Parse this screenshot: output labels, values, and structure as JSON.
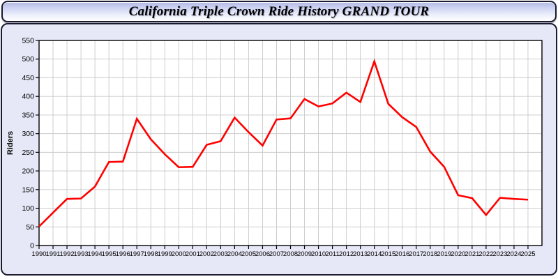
{
  "window": {
    "title": "California Triple Crown Ride History GRAND TOUR"
  },
  "colors": {
    "line": "#ff0000",
    "grid": "#c9c9c9",
    "plot_bg": "#ffffff",
    "panel_bg": "#e7e8f7",
    "frame": "#000000",
    "border": "#1b1b30",
    "titlebar_top": "#b2b9e4",
    "titlebar_bottom": "#ffffff",
    "text": "#000000"
  },
  "chart_data": {
    "type": "line",
    "title": "California Triple Crown Ride History GRAND TOUR",
    "xlabel": "",
    "ylabel": "Riders",
    "ylim": [
      0,
      550
    ],
    "yticks": [
      0,
      50,
      100,
      150,
      200,
      250,
      300,
      350,
      400,
      450,
      500,
      550
    ],
    "grid": true,
    "legend_position": "none",
    "x": [
      1990,
      1991,
      1992,
      1993,
      1994,
      1995,
      1996,
      1997,
      1998,
      1999,
      2000,
      2001,
      2002,
      2003,
      2004,
      2005,
      2006,
      2007,
      2008,
      2009,
      2010,
      2011,
      2012,
      2013,
      2014,
      2015,
      2016,
      2017,
      2018,
      2019,
      2020,
      2021,
      2022,
      2023,
      2024,
      2025
    ],
    "series": [
      {
        "name": "Riders",
        "values": [
          51,
          88,
          125,
          126,
          158,
          224,
          225,
          340,
          285,
          245,
          210,
          211,
          270,
          280,
          343,
          304,
          268,
          338,
          341,
          393,
          373,
          381,
          410,
          385,
          494,
          380,
          344,
          318,
          252,
          211,
          135,
          127,
          82,
          128,
          125,
          123
        ]
      }
    ]
  }
}
